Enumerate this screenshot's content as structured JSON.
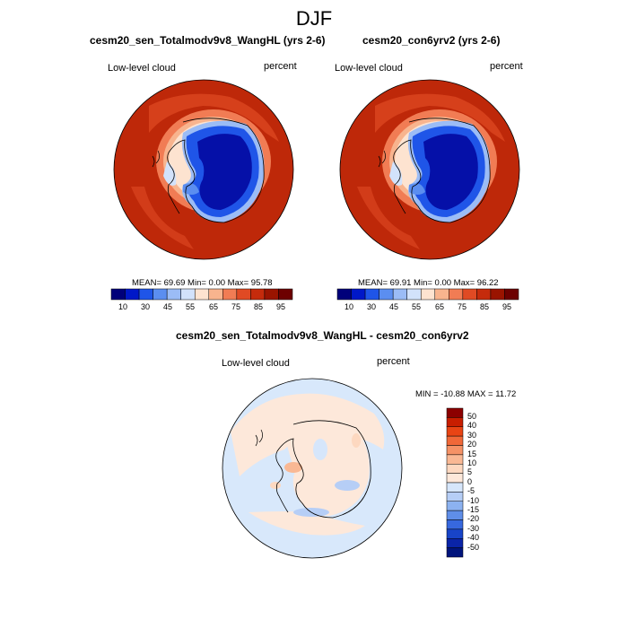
{
  "figure": {
    "title": "DJF"
  },
  "panel_left": {
    "title": "cesm20_sen_Totalmodv9v8_WangHL (yrs 2-6)",
    "variable": "Low-level cloud",
    "units": "percent",
    "stats": "MEAN=  69.69  Min=   0.00  Max=  95.78",
    "colorbar_labels": [
      "10",
      "30",
      "45",
      "55",
      "65",
      "75",
      "85",
      "95"
    ]
  },
  "panel_right": {
    "title": "cesm20_con6yrv2 (yrs 2-6)",
    "variable": "Low-level cloud",
    "units": "percent",
    "stats": "MEAN=  69.91  Min=   0.00  Max=  96.22",
    "colorbar_labels": [
      "10",
      "30",
      "45",
      "55",
      "65",
      "75",
      "85",
      "95"
    ]
  },
  "panel_diff": {
    "title": "cesm20_sen_Totalmodv9v8_WangHL - cesm20_con6yrv2",
    "variable": "Low-level cloud",
    "units": "percent",
    "stats": "MIN = -10.88 MAX =  11.72",
    "colorbar_labels": [
      "50",
      "40",
      "30",
      "20",
      "15",
      "10",
      "5",
      "0",
      "-5",
      "-10",
      "-15",
      "-20",
      "-30",
      "-40",
      "-50"
    ]
  },
  "colors": {
    "abs_scale": [
      "#00007a",
      "#0018c8",
      "#1f55e8",
      "#5b8ef0",
      "#9bbcf6",
      "#d2e2fb",
      "#fde3d0",
      "#f8b48e",
      "#f17c54",
      "#e04a24",
      "#c52b0c",
      "#9a1400",
      "#6d0000"
    ],
    "diff_scale": [
      "#8c0000",
      "#c81e00",
      "#e84414",
      "#f06838",
      "#f59266",
      "#f9b894",
      "#fdd8c0",
      "#fde8da",
      "#d6e6fb",
      "#b6cef6",
      "#8cb2f0",
      "#5f8ee8",
      "#3768de",
      "#1844c8",
      "#0a24a8",
      "#00147c"
    ],
    "land_dark": "#0510a8",
    "ocean_abs": "#c42a0a",
    "ocean_diff": "#d8e8fb"
  }
}
